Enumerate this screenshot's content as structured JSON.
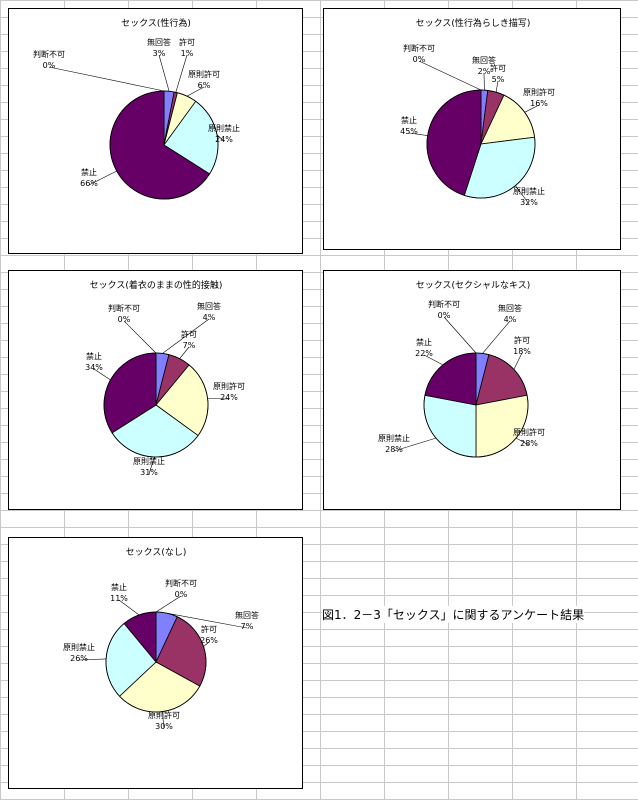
{
  "colors": {
    "無回答": "#8080ff",
    "許可": "#993366",
    "原則許可": "#ffffcc",
    "原則禁止": "#ccffff",
    "禁止": "#660066",
    "判断不可": "#ffffff"
  },
  "caption": "図1．2－3「セックス」に関するアンケート結果",
  "chart_data": [
    {
      "type": "pie",
      "title": "セックス(性行為)",
      "slices": [
        {
          "label": "無回答",
          "value": 3,
          "pct": "3%"
        },
        {
          "label": "許可",
          "value": 1,
          "pct": "1%"
        },
        {
          "label": "原則許可",
          "value": 6,
          "pct": "6%"
        },
        {
          "label": "原則禁止",
          "value": 24,
          "pct": "24%"
        },
        {
          "label": "禁止",
          "value": 66,
          "pct": "66%"
        },
        {
          "label": "判断不可",
          "value": 0,
          "pct": "0%"
        }
      ]
    },
    {
      "type": "pie",
      "title": "セックス(性行為らしき描写)",
      "slices": [
        {
          "label": "無回答",
          "value": 2,
          "pct": "2%"
        },
        {
          "label": "許可",
          "value": 5,
          "pct": "5%"
        },
        {
          "label": "原則許可",
          "value": 16,
          "pct": "16%"
        },
        {
          "label": "原則禁止",
          "value": 32,
          "pct": "32%"
        },
        {
          "label": "禁止",
          "value": 45,
          "pct": "45%"
        },
        {
          "label": "判断不可",
          "value": 0,
          "pct": "0%"
        }
      ]
    },
    {
      "type": "pie",
      "title": "セックス(着衣のままの性的接触)",
      "slices": [
        {
          "label": "無回答",
          "value": 4,
          "pct": "4%"
        },
        {
          "label": "許可",
          "value": 7,
          "pct": "7%"
        },
        {
          "label": "原則許可",
          "value": 24,
          "pct": "24%"
        },
        {
          "label": "原則禁止",
          "value": 31,
          "pct": "31%"
        },
        {
          "label": "禁止",
          "value": 34,
          "pct": "34%"
        },
        {
          "label": "判断不可",
          "value": 0,
          "pct": "0%"
        }
      ]
    },
    {
      "type": "pie",
      "title": "セックス(セクシャルなキス)",
      "slices": [
        {
          "label": "無回答",
          "value": 4,
          "pct": "4%"
        },
        {
          "label": "許可",
          "value": 18,
          "pct": "18%"
        },
        {
          "label": "原則許可",
          "value": 28,
          "pct": "28%"
        },
        {
          "label": "原則禁止",
          "value": 28,
          "pct": "28%"
        },
        {
          "label": "禁止",
          "value": 22,
          "pct": "22%"
        },
        {
          "label": "判断不可",
          "value": 0,
          "pct": "0%"
        }
      ]
    },
    {
      "type": "pie",
      "title": "セックス(なし)",
      "slices": [
        {
          "label": "無回答",
          "value": 7,
          "pct": "7%"
        },
        {
          "label": "許可",
          "value": 26,
          "pct": "26%"
        },
        {
          "label": "原則許可",
          "value": 30,
          "pct": "30%"
        },
        {
          "label": "原則禁止",
          "value": 26,
          "pct": "26%"
        },
        {
          "label": "禁止",
          "value": 11,
          "pct": "11%"
        },
        {
          "label": "判断不可",
          "value": 0,
          "pct": "0%"
        }
      ]
    }
  ]
}
